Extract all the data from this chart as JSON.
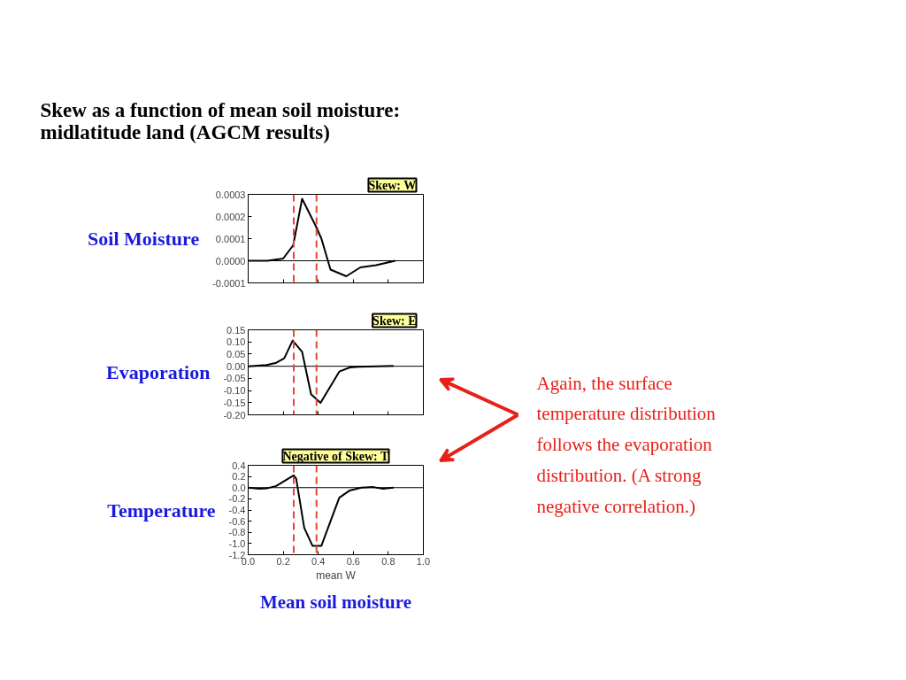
{
  "chart_data": [
    {
      "type": "line",
      "title": "Skew as a function of mean soil moisture:\nmidlatitude land (AGCM results)",
      "ylabel": "Soil Moisture",
      "annotations": [
        "Skew: W"
      ],
      "series": [
        {
          "color": "#000000",
          "x": [
            0,
            0.11,
            0.2,
            0.257,
            0.308,
            0.39,
            0.418,
            0.47,
            0.56,
            0.64,
            0.73,
            0.84
          ],
          "values": [
            0,
            0,
            1e-05,
            7e-05,
            0.00028,
            0.00015,
            0.0001,
            -4e-05,
            -7e-05,
            -3e-05,
            -2e-05,
            0
          ]
        }
      ],
      "xlim": [
        0,
        1
      ],
      "ylim": [
        -0.0001,
        0.0003
      ],
      "yticks": [
        {
          "value": 0.0003,
          "label": "0.0003"
        },
        {
          "value": 0.0002,
          "label": "0.0002"
        },
        {
          "value": 0.0001,
          "label": "0.0001"
        },
        {
          "value": 0,
          "label": "0.0000"
        },
        {
          "value": -0.0001,
          "label": "-0.0001"
        }
      ],
      "tick_labels": "y",
      "grid": false,
      "marker": "none",
      "line_style": "solid",
      "ref_lines": [
        {
          "axis": "y",
          "value": 0,
          "color": "#000000",
          "line_style": "solid"
        },
        {
          "axis": "x",
          "value": 0.26,
          "color": "#e8452c",
          "line_style": "dashed"
        },
        {
          "axis": "x",
          "value": 0.39,
          "color": "#e8452c",
          "line_style": "dashed"
        }
      ]
    },
    {
      "type": "line",
      "ylabel": "Evaporation",
      "annotations": [
        "Skew: E",
        "Again, the surface\ntemperature distribution\nfollows the evaporation\ndistribution.  (A strong\nnegative correlation.)"
      ],
      "series": [
        {
          "color": "#000000",
          "x": [
            0,
            0.105,
            0.156,
            0.206,
            0.254,
            0.308,
            0.359,
            0.413,
            0.52,
            0.58,
            0.63,
            0.83
          ],
          "values": [
            0,
            0.005,
            0.013,
            0.033,
            0.106,
            0.059,
            -0.115,
            -0.151,
            -0.022,
            -0.005,
            -0.002,
            0.001
          ]
        }
      ],
      "xlim": [
        0,
        1
      ],
      "ylim": [
        -0.2,
        0.15
      ],
      "yticks": [
        {
          "value": 0.15,
          "label": "0.15"
        },
        {
          "value": 0.1,
          "label": "0.10"
        },
        {
          "value": 0.05,
          "label": "0.05"
        },
        {
          "value": 0,
          "label": "0.00"
        },
        {
          "value": -0.05,
          "label": "-0.05"
        },
        {
          "value": -0.1,
          "label": "-0.10"
        },
        {
          "value": -0.15,
          "label": "-0.15"
        },
        {
          "value": -0.2,
          "label": "-0.20"
        }
      ],
      "tick_labels": "y",
      "grid": false,
      "marker": "none",
      "line_style": "solid",
      "ref_lines": [
        {
          "axis": "y",
          "value": 0,
          "color": "#000000",
          "line_style": "solid"
        },
        {
          "axis": "x",
          "value": 0.26,
          "color": "#e8452c",
          "line_style": "dashed"
        },
        {
          "axis": "x",
          "value": 0.39,
          "color": "#e8452c",
          "line_style": "dashed"
        }
      ]
    },
    {
      "type": "line",
      "ylabel": "Temperature",
      "xlabel": "mean W",
      "annotations": [
        "Negative of Skew: T",
        "Mean soil moisture"
      ],
      "series": [
        {
          "color": "#000000",
          "x": [
            0,
            0.063,
            0.11,
            0.16,
            0.26,
            0.274,
            0.32,
            0.367,
            0.418,
            0.52,
            0.58,
            0.646,
            0.714,
            0.77,
            0.83
          ],
          "values": [
            0,
            -0.02,
            -0.01,
            0.03,
            0.22,
            0.16,
            -0.72,
            -1.04,
            -1.04,
            -0.18,
            -0.05,
            0,
            0.01,
            -0.02,
            0
          ]
        }
      ],
      "xlim": [
        0,
        1
      ],
      "ylim": [
        -1.2,
        0.4
      ],
      "xticks": [
        {
          "value": 0,
          "label": "0.0"
        },
        0.2,
        0.4,
        0.6,
        0.8,
        {
          "value": 1,
          "label": "1.0"
        }
      ],
      "yticks": [
        0.4,
        0.2,
        {
          "value": 0,
          "label": "0.0"
        },
        -0.2,
        -0.4,
        -0.6,
        -0.8,
        {
          "value": -1,
          "label": "-1.0"
        },
        -1.2
      ],
      "grid": false,
      "marker": "none",
      "line_style": "solid",
      "ref_lines": [
        {
          "axis": "y",
          "value": 0,
          "color": "#000000",
          "line_style": "solid"
        },
        {
          "axis": "x",
          "value": 0.26,
          "color": "#e8452c",
          "line_style": "dashed"
        },
        {
          "axis": "x",
          "value": 0.39,
          "color": "#e8452c",
          "line_style": "dashed"
        }
      ]
    }
  ]
}
